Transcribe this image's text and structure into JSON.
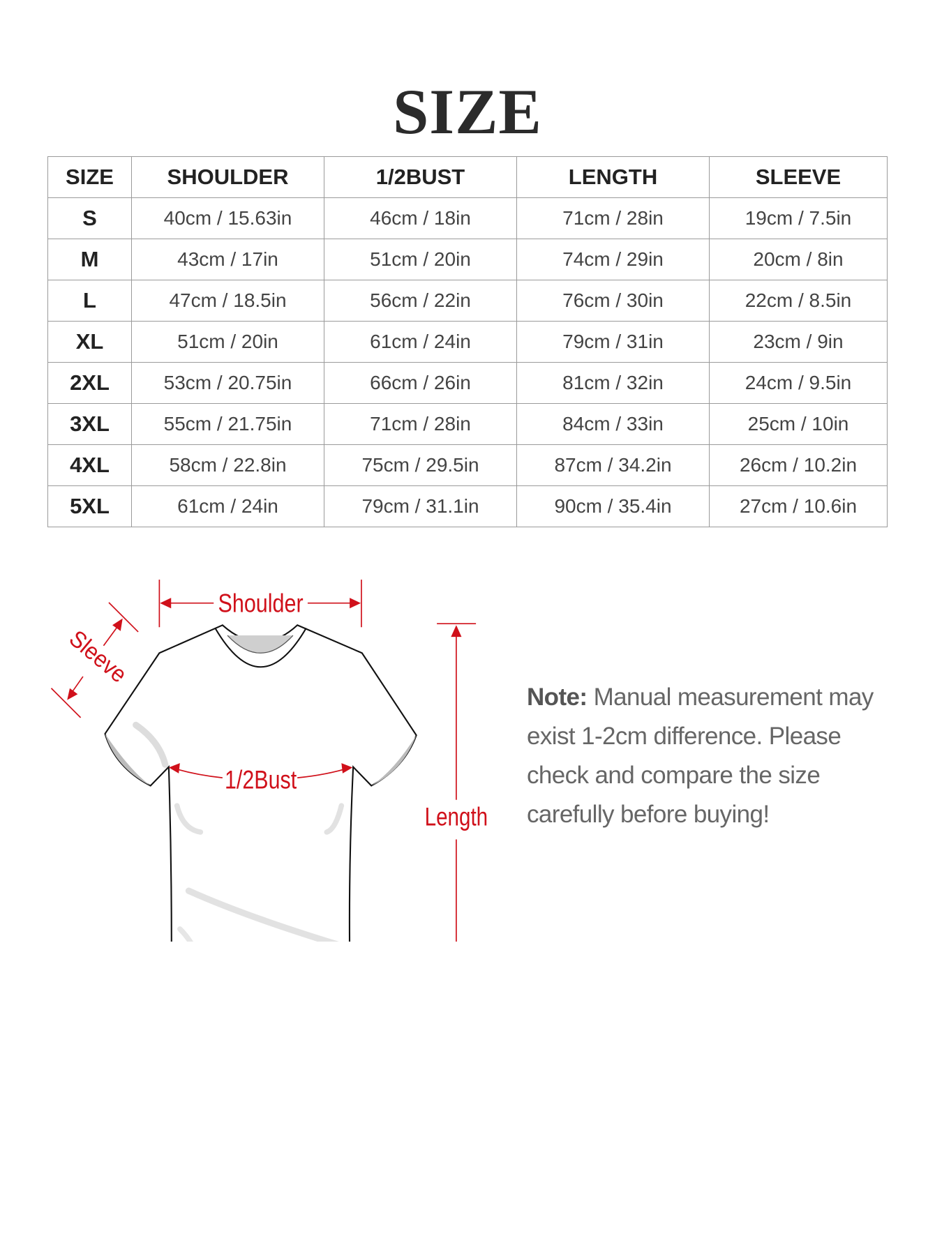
{
  "title": "SIZE",
  "table": {
    "headers": [
      "SIZE",
      "SHOULDER",
      "1/2BUST",
      "LENGTH",
      "SLEEVE"
    ],
    "rows": [
      [
        "S",
        "40cm / 15.63in",
        "46cm / 18in",
        "71cm / 28in",
        "19cm / 7.5in"
      ],
      [
        "M",
        "43cm / 17in",
        "51cm / 20in",
        "74cm / 29in",
        "20cm / 8in"
      ],
      [
        "L",
        "47cm / 18.5in",
        "56cm / 22in",
        "76cm / 30in",
        "22cm / 8.5in"
      ],
      [
        "XL",
        "51cm / 20in",
        "61cm / 24in",
        "79cm / 31in",
        "23cm / 9in"
      ],
      [
        "2XL",
        "53cm / 20.75in",
        "66cm / 26in",
        "81cm / 32in",
        "24cm / 9.5in"
      ],
      [
        "3XL",
        "55cm / 21.75in",
        "71cm / 28in",
        "84cm / 33in",
        "25cm / 10in"
      ],
      [
        "4XL",
        "58cm / 22.8in",
        "75cm / 29.5in",
        "87cm / 34.2in",
        "26cm / 10.2in"
      ],
      [
        "5XL",
        "61cm / 24in",
        "79cm / 31.1in",
        "90cm / 35.4in",
        "27cm / 10.6in"
      ]
    ]
  },
  "diagram": {
    "labels": {
      "shoulder": "Shoulder",
      "sleeve": "Sleeve",
      "bust": "1/2Bust",
      "length": "Length"
    },
    "accent_color": "#d0101a"
  },
  "note": {
    "label": "Note:",
    "text": "Manual measurement may exist 1-2cm difference. Please check and compare the size carefully before buying!"
  }
}
